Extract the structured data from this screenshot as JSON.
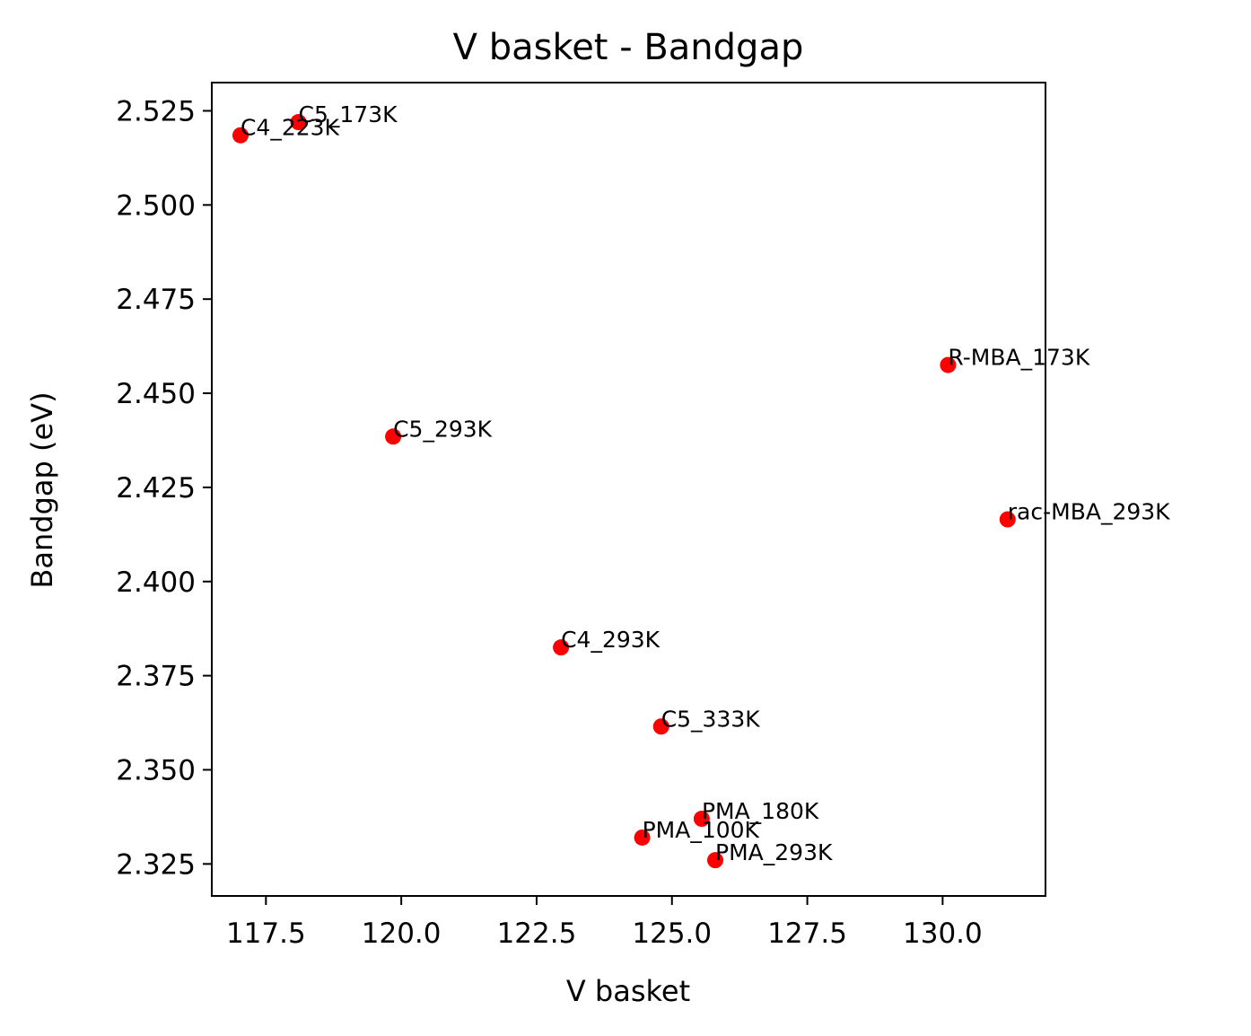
{
  "chart_data": {
    "type": "scatter",
    "title": "V basket - Bandgap",
    "xlabel": "V basket",
    "ylabel": "Bandgap (eV)",
    "xlim": [
      116.5,
      131.9
    ],
    "ylim": [
      2.3165,
      2.5325
    ],
    "xticks": [
      117.5,
      120.0,
      122.5,
      125.0,
      127.5,
      130.0
    ],
    "xtick_labels": [
      "117.5",
      "120.0",
      "122.5",
      "125.0",
      "127.5",
      "130.0"
    ],
    "yticks": [
      2.325,
      2.35,
      2.375,
      2.4,
      2.425,
      2.45,
      2.475,
      2.5,
      2.525
    ],
    "ytick_labels": [
      "2.325",
      "2.350",
      "2.375",
      "2.400",
      "2.425",
      "2.450",
      "2.475",
      "2.500",
      "2.525"
    ],
    "grid": false,
    "marker_color": "#ff0000",
    "points": [
      {
        "label": "C5_173K",
        "x": 118.1,
        "y": 2.522
      },
      {
        "label": "C4_223K",
        "x": 117.03,
        "y": 2.5185
      },
      {
        "label": "C5_293K",
        "x": 119.85,
        "y": 2.4385
      },
      {
        "label": "R-MBA_173K",
        "x": 130.1,
        "y": 2.4575
      },
      {
        "label": "rac-MBA_293K",
        "x": 131.2,
        "y": 2.4165
      },
      {
        "label": "C4_293K",
        "x": 122.95,
        "y": 2.3825
      },
      {
        "label": "C5_333K",
        "x": 124.8,
        "y": 2.3615
      },
      {
        "label": "PMA_180K",
        "x": 125.55,
        "y": 2.337
      },
      {
        "label": "PMA_100K",
        "x": 124.45,
        "y": 2.332
      },
      {
        "label": "PMA_293K",
        "x": 125.8,
        "y": 2.326
      }
    ]
  }
}
